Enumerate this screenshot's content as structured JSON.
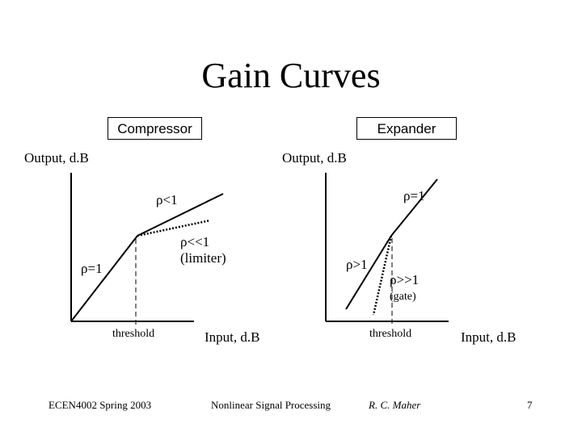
{
  "title": "Gain Curves",
  "compressor": {
    "box_label": "Compressor",
    "y_axis_label": "Output, d.B",
    "x_axis_label": "Input, d.B",
    "threshold_label": "threshold",
    "unity_label": "ρ=1",
    "ratio_label": "ρ<1",
    "limiter_ratio_label": "ρ<<1",
    "limiter_label": "(limiter)"
  },
  "expander": {
    "box_label": "Expander",
    "y_axis_label": "Output, d.B",
    "x_axis_label": "Input, d.B",
    "threshold_label": "threshold",
    "unity_label": "ρ=1",
    "ratio_label": "ρ>1",
    "gate_ratio_label": "ρ>>1",
    "gate_label": "(gate)"
  },
  "footer": {
    "course": "ECEN4002 Spring 2003",
    "topic": "Nonlinear Signal Processing",
    "author": "R. C. Maher",
    "page": "7"
  }
}
